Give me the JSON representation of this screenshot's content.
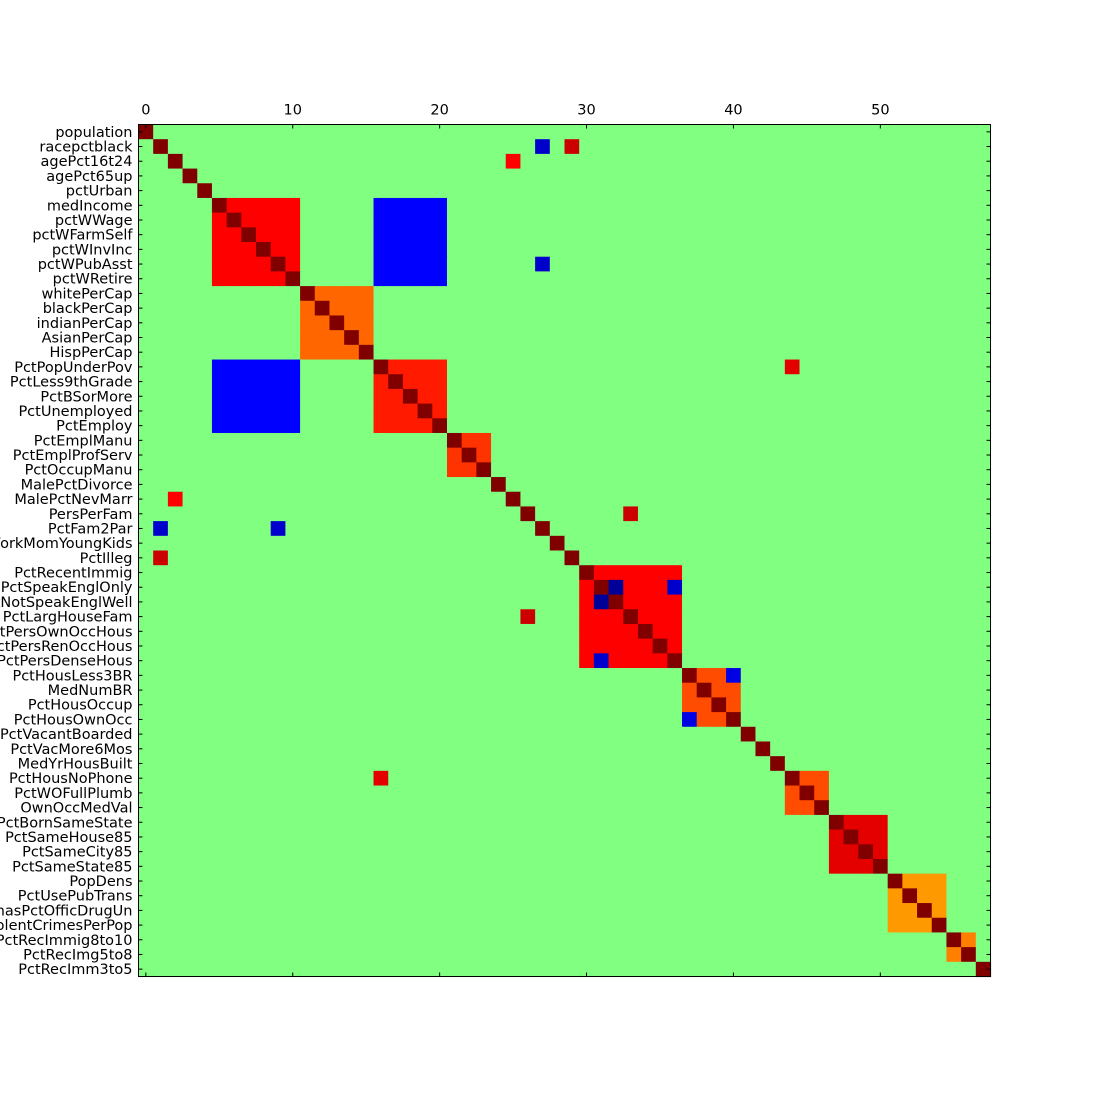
{
  "chart_data": {
    "type": "heatmap",
    "title": "",
    "xlabel": "",
    "ylabel": "",
    "x_ticks": [
      0,
      10,
      20,
      30,
      40,
      50
    ],
    "row_labels": [
      "population",
      "racepctblack",
      "agePct16t24",
      "agePct65up",
      "pctUrban",
      "medIncome",
      "pctWWage",
      "pctWFarmSelf",
      "pctWInvInc",
      "pctWPubAsst",
      "pctWRetire",
      "whitePerCap",
      "blackPerCap",
      "indianPerCap",
      "AsianPerCap",
      "HispPerCap",
      "PctPopUnderPov",
      "PctLess9thGrade",
      "PctBSorMore",
      "PctUnemployed",
      "PctEmploy",
      "PctEmplManu",
      "PctEmplProfServ",
      "PctOccupManu",
      "MalePctDivorce",
      "MalePctNevMarr",
      "PersPerFam",
      "PctFam2Par",
      "PctWorkMomYoungKids",
      "PctIlleg",
      "PctRecentImmig",
      "PctSpeakEnglOnly",
      "PctNotSpeakEnglWell",
      "PctLargHouseFam",
      "PctPersOwnOccHous",
      "PctPersRenOccHous",
      "PctPersDenseHous",
      "PctHousLess3BR",
      "MedNumBR",
      "PctHousOccup",
      "PctHousOwnOcc",
      "PctVacantBoarded",
      "PctVacMore6Mos",
      "MedYrHousBuilt",
      "PctHousNoPhone",
      "PctWOFullPlumb",
      "OwnOccMedVal",
      "PctBornSameState",
      "PctSameHouse85",
      "PctSameCity85",
      "PctSameState85",
      "PopDens",
      "PctUsePubTrans",
      "LemasPctOfficDrugUn",
      "ViolentCrimesPerPop",
      "PctRecImmig8to10",
      "PctRecImg5to8",
      "PctRecImm3to5"
    ],
    "colormap": "jet",
    "value_range": [
      -1,
      1
    ],
    "blocks": [
      {
        "rows": [
          0,
          57
        ],
        "cols": [
          0,
          57
        ],
        "value": 0.0
      },
      {
        "rows": [
          5,
          11
        ],
        "cols": [
          5,
          11
        ],
        "value": 0.75
      },
      {
        "rows": [
          11,
          16
        ],
        "cols": [
          11,
          16
        ],
        "value": 0.55
      },
      {
        "rows": [
          16,
          21
        ],
        "cols": [
          16,
          21
        ],
        "value": 0.7
      },
      {
        "rows": [
          5,
          11
        ],
        "cols": [
          16,
          21
        ],
        "value": -0.75
      },
      {
        "rows": [
          16,
          21
        ],
        "cols": [
          5,
          11
        ],
        "value": -0.75
      },
      {
        "rows": [
          30,
          37
        ],
        "cols": [
          30,
          37
        ],
        "value": 0.75
      },
      {
        "rows": [
          37,
          41
        ],
        "cols": [
          37,
          41
        ],
        "value": 0.6
      },
      {
        "rows": [
          47,
          51
        ],
        "cols": [
          47,
          51
        ],
        "value": 0.8
      },
      {
        "rows": [
          51,
          55
        ],
        "cols": [
          51,
          55
        ],
        "value": 0.45
      },
      {
        "rows": [
          55,
          57
        ],
        "cols": [
          55,
          57
        ],
        "value": 0.5
      },
      {
        "rows": [
          44,
          47
        ],
        "cols": [
          44,
          47
        ],
        "value": 0.6
      },
      {
        "rows": [
          21,
          24
        ],
        "cols": [
          21,
          24
        ],
        "value": 0.65
      }
    ],
    "cells": [
      {
        "row": 1,
        "col": 29,
        "value": 0.85
      },
      {
        "row": 29,
        "col": 1,
        "value": 0.85
      },
      {
        "row": 1,
        "col": 27,
        "value": -0.85
      },
      {
        "row": 27,
        "col": 1,
        "value": -0.85
      },
      {
        "row": 2,
        "col": 25,
        "value": 0.75
      },
      {
        "row": 25,
        "col": 2,
        "value": 0.75
      },
      {
        "row": 16,
        "col": 44,
        "value": 0.8
      },
      {
        "row": 44,
        "col": 16,
        "value": 0.8
      },
      {
        "row": 27,
        "col": 9,
        "value": -0.85
      },
      {
        "row": 9,
        "col": 27,
        "value": -0.85
      },
      {
        "row": 26,
        "col": 33,
        "value": 0.85
      },
      {
        "row": 33,
        "col": 26,
        "value": 0.85
      },
      {
        "row": 31,
        "col": 32,
        "value": -0.95
      },
      {
        "row": 32,
        "col": 31,
        "value": -0.95
      },
      {
        "row": 31,
        "col": 36,
        "value": -0.85
      },
      {
        "row": 36,
        "col": 31,
        "value": -0.85
      },
      {
        "row": 37,
        "col": 40,
        "value": -0.8
      },
      {
        "row": 40,
        "col": 37,
        "value": -0.8
      }
    ]
  }
}
